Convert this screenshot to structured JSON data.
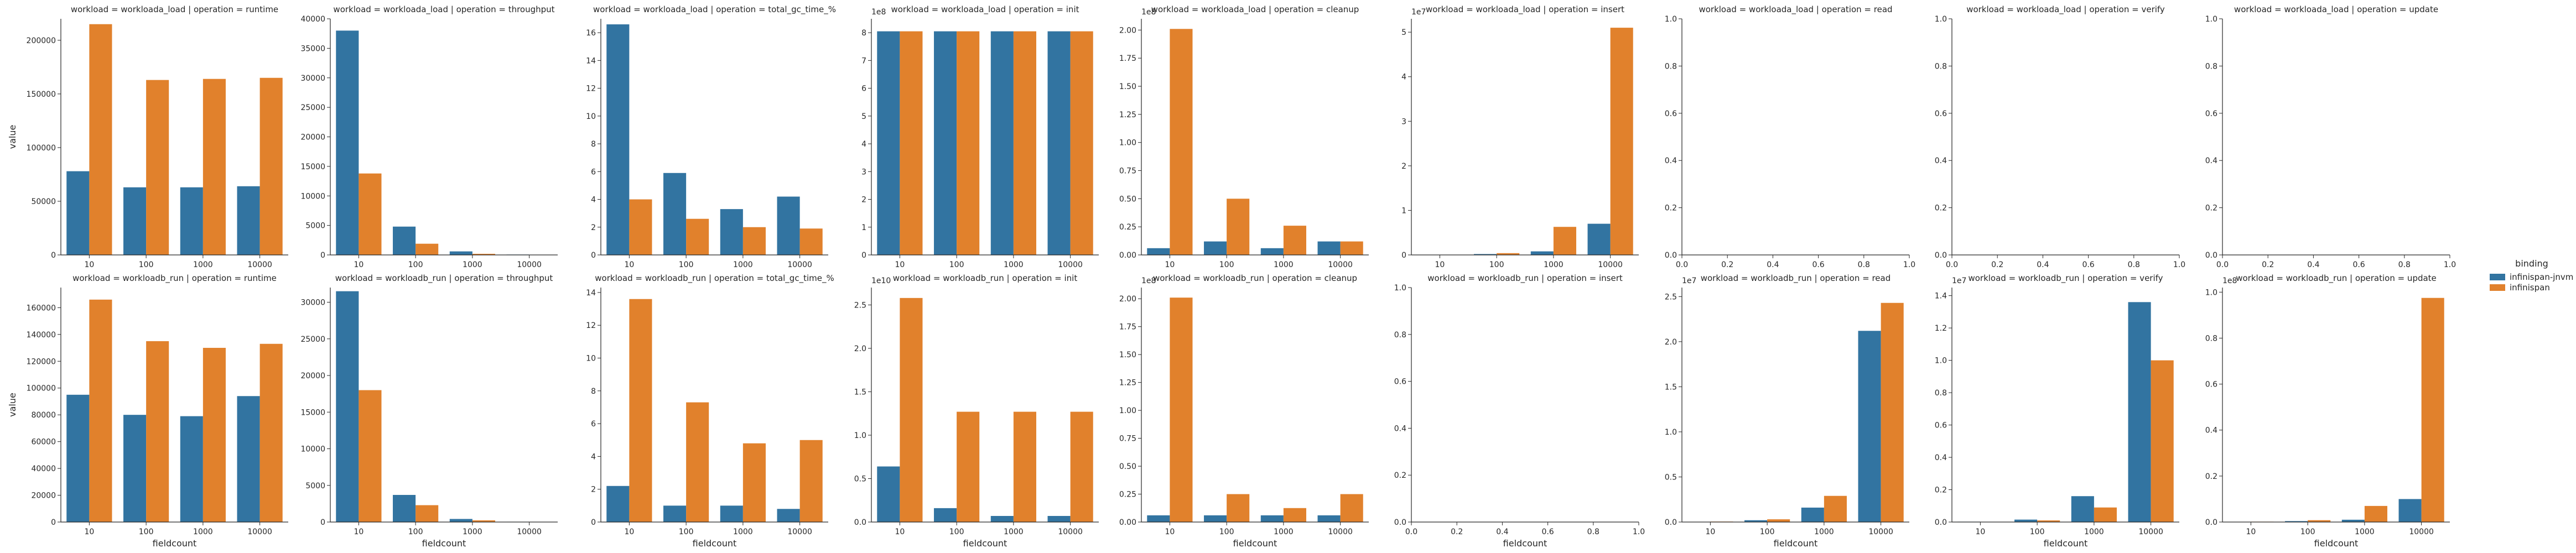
{
  "colors": {
    "infinispan-jnvm": "#3274a1",
    "infinispan": "#e1812c",
    "axis": "#262626"
  },
  "legend": {
    "title": "binding",
    "items": [
      {
        "label": "infinispan-jnvm",
        "color": "#3274a1"
      },
      {
        "label": "infinispan",
        "color": "#e1812c"
      }
    ]
  },
  "chart_data": [
    {
      "type": "bar",
      "title": "workload = workloada_load | operation = runtime",
      "xlabel": "",
      "ylabel": "value",
      "categories": [
        "10",
        "100",
        "1000",
        "10000"
      ],
      "ylim": [
        0,
        220000
      ],
      "yticks": [
        0,
        50000,
        100000,
        150000,
        200000
      ],
      "ytick_labels": [
        "0",
        "50000",
        "100000",
        "150000",
        "200000"
      ],
      "sci": "",
      "series": [
        {
          "name": "infinispan-jnvm",
          "values": [
            78000,
            63000,
            63000,
            64000
          ]
        },
        {
          "name": "infinispan",
          "values": [
            215000,
            163000,
            164000,
            165000
          ]
        }
      ]
    },
    {
      "type": "bar",
      "title": "workload = workloada_load | operation = throughput",
      "xlabel": "",
      "ylabel": "",
      "categories": [
        "10",
        "100",
        "1000",
        "10000"
      ],
      "ylim": [
        0,
        40000
      ],
      "yticks": [
        0,
        5000,
        10000,
        15000,
        20000,
        25000,
        30000,
        35000,
        40000
      ],
      "ytick_labels": [
        "0",
        "5000",
        "10000",
        "15000",
        "20000",
        "25000",
        "30000",
        "35000",
        "40000"
      ],
      "sci": "",
      "series": [
        {
          "name": "infinispan-jnvm",
          "values": [
            38000,
            4800,
            600,
            60
          ]
        },
        {
          "name": "infinispan",
          "values": [
            13800,
            1900,
            190,
            20
          ]
        }
      ]
    },
    {
      "type": "bar",
      "title": "workload = workloada_load | operation = total_gc_time_%",
      "xlabel": "",
      "ylabel": "",
      "categories": [
        "10",
        "100",
        "1000",
        "10000"
      ],
      "ylim": [
        0,
        17
      ],
      "yticks": [
        0,
        2,
        4,
        6,
        8,
        10,
        12,
        14,
        16
      ],
      "ytick_labels": [
        "0",
        "2",
        "4",
        "6",
        "8",
        "10",
        "12",
        "14",
        "16"
      ],
      "sci": "",
      "series": [
        {
          "name": "infinispan-jnvm",
          "values": [
            16.6,
            5.9,
            3.3,
            4.2
          ]
        },
        {
          "name": "infinispan",
          "values": [
            4.0,
            2.6,
            2.0,
            1.9
          ]
        }
      ]
    },
    {
      "type": "bar",
      "title": "workload = workloada_load | operation = init",
      "xlabel": "",
      "ylabel": "",
      "categories": [
        "10",
        "100",
        "1000",
        "10000"
      ],
      "ylim": [
        0,
        850000000
      ],
      "yticks": [
        0,
        100000000,
        200000000,
        300000000,
        400000000,
        500000000,
        600000000,
        700000000,
        800000000
      ],
      "ytick_labels": [
        "0",
        "1",
        "2",
        "3",
        "4",
        "5",
        "6",
        "7",
        "8"
      ],
      "sci": "1e8",
      "series": [
        {
          "name": "infinispan-jnvm",
          "values": [
            805000000,
            805000000,
            805000000,
            805000000
          ]
        },
        {
          "name": "infinispan",
          "values": [
            805000000,
            805000000,
            805000000,
            805000000
          ]
        }
      ]
    },
    {
      "type": "bar",
      "title": "workload = workloada_load | operation = cleanup",
      "xlabel": "",
      "ylabel": "",
      "categories": [
        "10",
        "100",
        "1000",
        "10000"
      ],
      "ylim": [
        0,
        210000000
      ],
      "yticks": [
        0,
        25000000,
        50000000,
        75000000,
        100000000,
        125000000,
        150000000,
        175000000,
        200000000
      ],
      "ytick_labels": [
        "0.00",
        "0.25",
        "0.50",
        "0.75",
        "1.00",
        "1.25",
        "1.50",
        "1.75",
        "2.00"
      ],
      "sci": "1e8",
      "series": [
        {
          "name": "infinispan-jnvm",
          "values": [
            6000000,
            12000000,
            6000000,
            12000000
          ]
        },
        {
          "name": "infinispan",
          "values": [
            201000000,
            50000000,
            26000000,
            12000000
          ]
        }
      ]
    },
    {
      "type": "bar",
      "title": "workload = workloada_load | operation = insert",
      "xlabel": "",
      "ylabel": "",
      "categories": [
        "10",
        "100",
        "1000",
        "10000"
      ],
      "ylim": [
        0,
        53000000
      ],
      "yticks": [
        0,
        10000000,
        20000000,
        30000000,
        40000000,
        50000000
      ],
      "ytick_labels": [
        "0",
        "1",
        "2",
        "3",
        "4",
        "5"
      ],
      "sci": "1e7",
      "series": [
        {
          "name": "infinispan-jnvm",
          "values": [
            50000,
            200000,
            800000,
            7000000
          ]
        },
        {
          "name": "infinispan",
          "values": [
            60000,
            400000,
            6300000,
            51000000
          ]
        }
      ]
    },
    {
      "type": "empty",
      "title": "workload = workloada_load | operation = read",
      "xlabel": "",
      "ylabel": "",
      "xticks": [
        0,
        0.2,
        0.4,
        0.6,
        0.8,
        1
      ],
      "xtick_labels": [
        "0.0",
        "0.2",
        "0.4",
        "0.6",
        "0.8",
        "1.0"
      ],
      "yticks": [
        0,
        0.2,
        0.4,
        0.6,
        0.8,
        1
      ],
      "ytick_labels": [
        "0.0",
        "0.2",
        "0.4",
        "0.6",
        "0.8",
        "1.0"
      ],
      "xlim": [
        0,
        1
      ],
      "ylim": [
        0,
        1
      ]
    },
    {
      "type": "empty",
      "title": "workload = workloada_load | operation = verify",
      "xlabel": "",
      "ylabel": "",
      "xticks": [
        0,
        0.2,
        0.4,
        0.6,
        0.8,
        1
      ],
      "xtick_labels": [
        "0.0",
        "0.2",
        "0.4",
        "0.6",
        "0.8",
        "1.0"
      ],
      "yticks": [
        0,
        0.2,
        0.4,
        0.6,
        0.8,
        1
      ],
      "ytick_labels": [
        "0.0",
        "0.2",
        "0.4",
        "0.6",
        "0.8",
        "1.0"
      ],
      "xlim": [
        0,
        1
      ],
      "ylim": [
        0,
        1
      ]
    },
    {
      "type": "empty",
      "title": "workload = workloada_load | operation = update",
      "xlabel": "",
      "ylabel": "",
      "xticks": [
        0,
        0.2,
        0.4,
        0.6,
        0.8,
        1
      ],
      "xtick_labels": [
        "0.0",
        "0.2",
        "0.4",
        "0.6",
        "0.8",
        "1.0"
      ],
      "yticks": [
        0,
        0.2,
        0.4,
        0.6,
        0.8,
        1
      ],
      "ytick_labels": [
        "0.0",
        "0.2",
        "0.4",
        "0.6",
        "0.8",
        "1.0"
      ],
      "xlim": [
        0,
        1
      ],
      "ylim": [
        0,
        1
      ]
    },
    {
      "type": "bar",
      "title": "workload = workloadb_run | operation = runtime",
      "xlabel": "fieldcount",
      "ylabel": "value",
      "categories": [
        "10",
        "100",
        "1000",
        "10000"
      ],
      "ylim": [
        0,
        175000
      ],
      "yticks": [
        0,
        20000,
        40000,
        60000,
        80000,
        100000,
        120000,
        140000,
        160000
      ],
      "ytick_labels": [
        "0",
        "20000",
        "40000",
        "60000",
        "80000",
        "100000",
        "120000",
        "140000",
        "160000"
      ],
      "sci": "",
      "series": [
        {
          "name": "infinispan-jnvm",
          "values": [
            95000,
            80000,
            79000,
            94000
          ]
        },
        {
          "name": "infinispan",
          "values": [
            166000,
            135000,
            130000,
            133000
          ]
        }
      ]
    },
    {
      "type": "bar",
      "title": "workload = workloadb_run | operation = throughput",
      "xlabel": "fieldcount",
      "ylabel": "",
      "categories": [
        "10",
        "100",
        "1000",
        "10000"
      ],
      "ylim": [
        0,
        32000
      ],
      "yticks": [
        0,
        5000,
        10000,
        15000,
        20000,
        25000,
        30000
      ],
      "ytick_labels": [
        "0",
        "5000",
        "10000",
        "15000",
        "20000",
        "25000",
        "30000"
      ],
      "sci": "",
      "series": [
        {
          "name": "infinispan-jnvm",
          "values": [
            31500,
            3700,
            420,
            40
          ]
        },
        {
          "name": "infinispan",
          "values": [
            18000,
            2300,
            230,
            25
          ]
        }
      ]
    },
    {
      "type": "bar",
      "title": "workload = workloadb_run | operation = total_gc_time_%",
      "xlabel": "fieldcount",
      "ylabel": "",
      "categories": [
        "10",
        "100",
        "1000",
        "10000"
      ],
      "ylim": [
        0,
        14.3
      ],
      "yticks": [
        0,
        2,
        4,
        6,
        8,
        10,
        12,
        14
      ],
      "ytick_labels": [
        "0",
        "2",
        "4",
        "6",
        "8",
        "10",
        "12",
        "14"
      ],
      "sci": "",
      "series": [
        {
          "name": "infinispan-jnvm",
          "values": [
            2.2,
            1.0,
            1.0,
            0.8
          ]
        },
        {
          "name": "infinispan",
          "values": [
            13.6,
            7.3,
            4.8,
            5.0
          ]
        }
      ]
    },
    {
      "type": "bar",
      "title": "workload = workloadb_run | operation = init",
      "xlabel": "fieldcount",
      "ylabel": "",
      "categories": [
        "10",
        "100",
        "1000",
        "10000"
      ],
      "ylim": [
        0,
        27000000000
      ],
      "yticks": [
        0,
        5000000000,
        10000000000,
        15000000000,
        20000000000,
        25000000000
      ],
      "ytick_labels": [
        "0.0",
        "0.5",
        "1.0",
        "1.5",
        "2.0",
        "2.5"
      ],
      "sci": "1e10",
      "series": [
        {
          "name": "infinispan-jnvm",
          "values": [
            6400000000,
            1600000000,
            700000000,
            700000000
          ]
        },
        {
          "name": "infinispan",
          "values": [
            25800000000,
            12700000000,
            12700000000,
            12700000000
          ]
        }
      ]
    },
    {
      "type": "bar",
      "title": "workload = workloadb_run | operation = cleanup",
      "xlabel": "fieldcount",
      "ylabel": "",
      "categories": [
        "10",
        "100",
        "1000",
        "10000"
      ],
      "ylim": [
        0,
        210000000
      ],
      "yticks": [
        0,
        25000000,
        50000000,
        75000000,
        100000000,
        125000000,
        150000000,
        175000000,
        200000000
      ],
      "ytick_labels": [
        "0.00",
        "0.25",
        "0.50",
        "0.75",
        "1.00",
        "1.25",
        "1.50",
        "1.75",
        "2.00"
      ],
      "sci": "1e8",
      "series": [
        {
          "name": "infinispan-jnvm",
          "values": [
            6000000,
            6000000,
            6000000,
            6000000
          ]
        },
        {
          "name": "infinispan",
          "values": [
            201000000,
            25000000,
            12500000,
            25000000
          ]
        }
      ]
    },
    {
      "type": "empty",
      "title": "workload = workloadb_run | operation = insert",
      "xlabel": "fieldcount",
      "ylabel": "",
      "xticks": [
        0,
        0.2,
        0.4,
        0.6,
        0.8,
        1
      ],
      "xtick_labels": [
        "0.0",
        "0.2",
        "0.4",
        "0.6",
        "0.8",
        "1.0"
      ],
      "yticks": [
        0,
        0.2,
        0.4,
        0.6,
        0.8,
        1
      ],
      "ytick_labels": [
        "0.0",
        "0.2",
        "0.4",
        "0.6",
        "0.8",
        "1.0"
      ],
      "xlim": [
        0,
        1
      ],
      "ylim": [
        0,
        1
      ]
    },
    {
      "type": "bar",
      "title": "workload = workloadb_run | operation = read",
      "xlabel": "fieldcount",
      "ylabel": "",
      "categories": [
        "10",
        "100",
        "1000",
        "10000"
      ],
      "ylim": [
        0,
        26000000
      ],
      "yticks": [
        0,
        5000000,
        10000000,
        15000000,
        20000000,
        25000000
      ],
      "ytick_labels": [
        "0.0",
        "0.5",
        "1.0",
        "1.5",
        "2.0",
        "2.5"
      ],
      "sci": "1e7",
      "series": [
        {
          "name": "infinispan-jnvm",
          "values": [
            30000,
            200000,
            1600000,
            21200000
          ]
        },
        {
          "name": "infinispan",
          "values": [
            50000,
            300000,
            2900000,
            24300000
          ]
        }
      ]
    },
    {
      "type": "bar",
      "title": "workload = workloadb_run | operation = verify",
      "xlabel": "fieldcount",
      "ylabel": "",
      "categories": [
        "10",
        "100",
        "1000",
        "10000"
      ],
      "ylim": [
        0,
        14500000
      ],
      "yticks": [
        0,
        2000000,
        4000000,
        6000000,
        8000000,
        10000000,
        12000000,
        14000000
      ],
      "ytick_labels": [
        "0.0",
        "0.2",
        "0.4",
        "0.6",
        "0.8",
        "1.0",
        "1.2",
        "1.4"
      ],
      "sci": "1e7",
      "series": [
        {
          "name": "infinispan-jnvm",
          "values": [
            20000,
            150000,
            1600000,
            13600000
          ]
        },
        {
          "name": "infinispan",
          "values": [
            15000,
            100000,
            900000,
            10000000
          ]
        }
      ]
    },
    {
      "type": "bar",
      "title": "workload = workloadb_run | operation = update",
      "xlabel": "fieldcount",
      "ylabel": "",
      "categories": [
        "10",
        "100",
        "1000",
        "10000"
      ],
      "ylim": [
        0,
        102000000
      ],
      "yticks": [
        0,
        20000000,
        40000000,
        60000000,
        80000000,
        100000000
      ],
      "ytick_labels": [
        "0.0",
        "0.2",
        "0.4",
        "0.6",
        "0.8",
        "1.0"
      ],
      "sci": "1e8",
      "series": [
        {
          "name": "infinispan-jnvm",
          "values": [
            80000,
            400000,
            1000000,
            10000000
          ]
        },
        {
          "name": "infinispan",
          "values": [
            150000,
            800000,
            7000000,
            97500000
          ]
        }
      ]
    }
  ]
}
